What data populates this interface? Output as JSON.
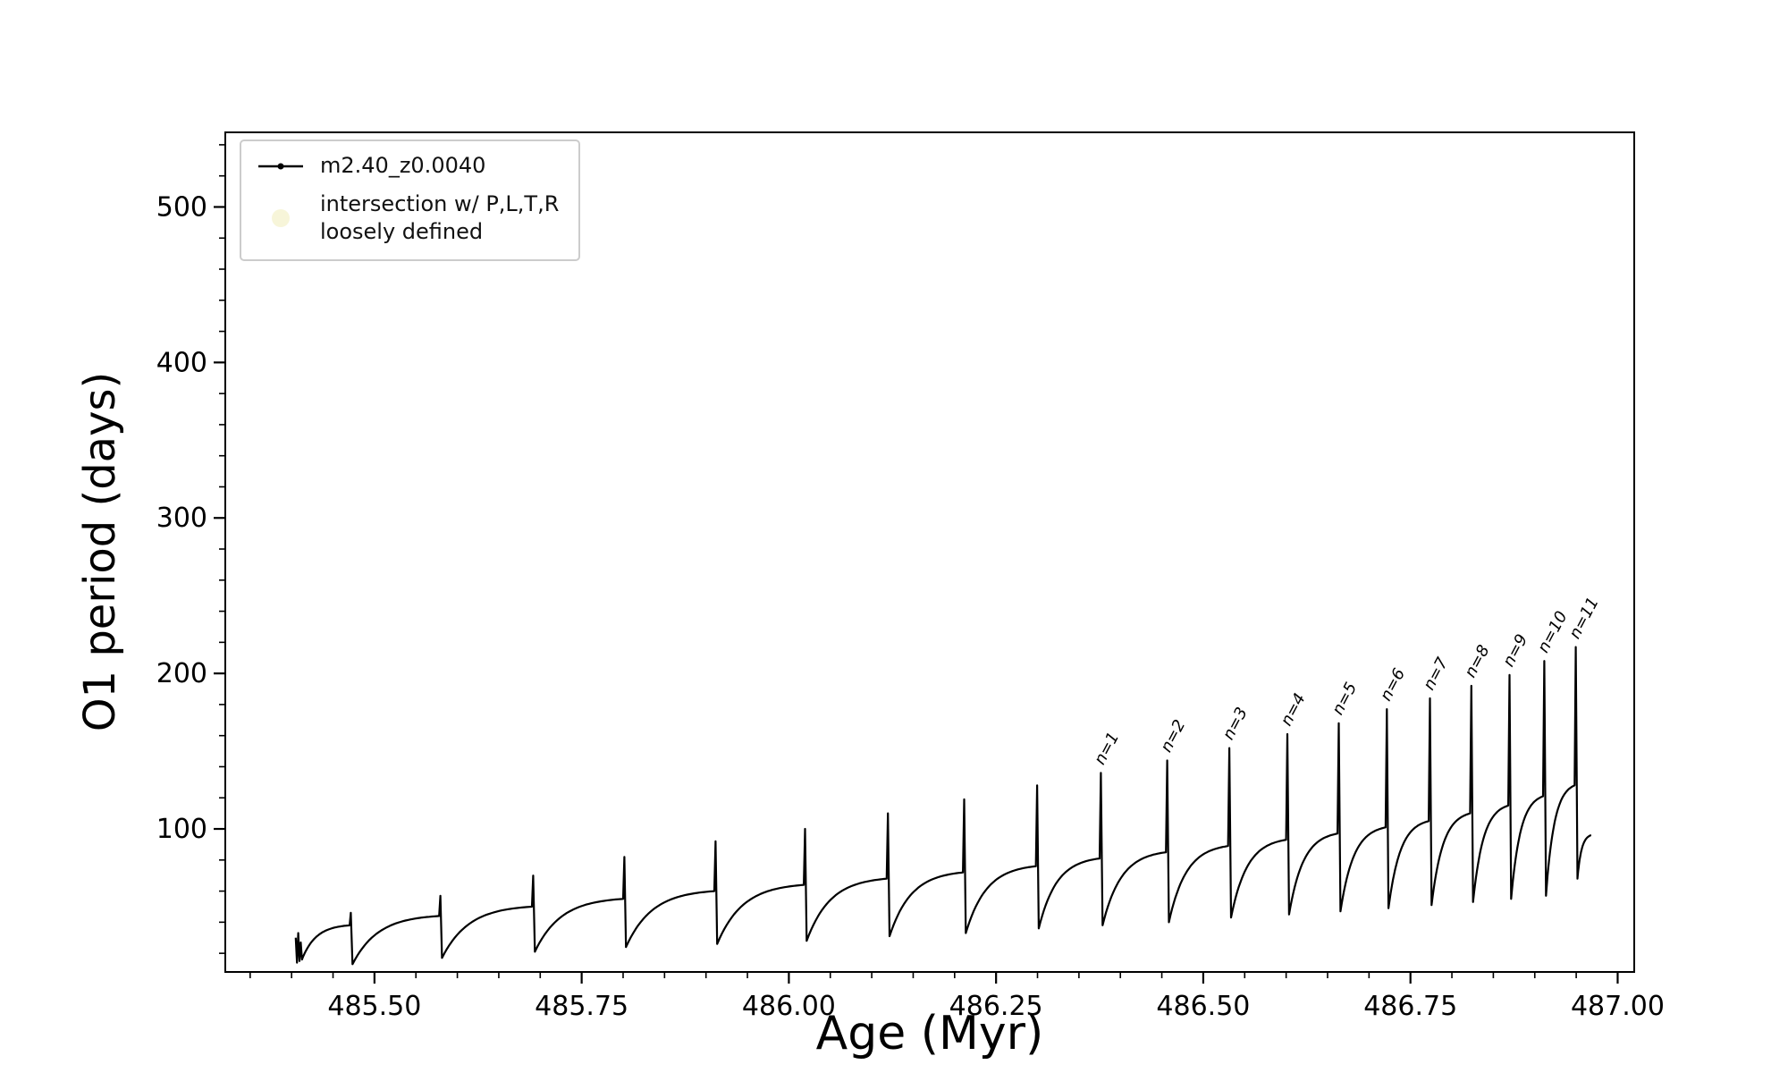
{
  "figure": {
    "background": "#ffffff",
    "series_color": "#000000",
    "axis_color": "#000000",
    "intersection_marker_color": "#eee8aa",
    "intersection_marker_opacity": 0.45
  },
  "legend": {
    "series_label": "m2.40_z0.0040",
    "intersection_label_line1": "intersection w/ P,L,T,R",
    "intersection_label_line2": "loosely defined"
  },
  "chart_data": {
    "type": "line",
    "title": "",
    "xlabel": "Age (Myr)",
    "ylabel": "O1 period (days)",
    "xlim": [
      485.32,
      487.02
    ],
    "ylim": [
      8,
      548
    ],
    "grid": false,
    "legend_position": "upper-left",
    "xticks": [
      {
        "v": 485.5,
        "label": "485.50"
      },
      {
        "v": 485.75,
        "label": "485.75"
      },
      {
        "v": 486.0,
        "label": "486.00"
      },
      {
        "v": 486.25,
        "label": "486.25"
      },
      {
        "v": 486.5,
        "label": "486.50"
      },
      {
        "v": 486.75,
        "label": "486.75"
      },
      {
        "v": 487.0,
        "label": "487.00"
      }
    ],
    "yticks": [
      {
        "v": 100,
        "label": "100"
      },
      {
        "v": 200,
        "label": "200"
      },
      {
        "v": 300,
        "label": "300"
      },
      {
        "v": 400,
        "label": "400"
      },
      {
        "v": 500,
        "label": "500"
      }
    ],
    "xtick_major_step": 0.25,
    "xminor_step": 0.05,
    "ytick_major_step": 100,
    "yminor_step": 20,
    "series": [
      {
        "name": "m2.40_z0.0040",
        "style": "line+marker",
        "units": {
          "x": "Myr",
          "y": "days"
        },
        "cycle_format": "[t_start, t_end, period_min, period_peak, spike_top]; spike_top null = track end",
        "intro_points": [
          [
            485.405,
            30
          ],
          [
            485.4065,
            14
          ],
          [
            485.408,
            33
          ],
          [
            485.4095,
            15
          ],
          [
            485.411,
            27
          ],
          [
            485.4125,
            16
          ]
        ],
        "cycles": [
          [
            485.4125,
            485.47,
            16,
            38,
            46
          ],
          [
            485.47,
            485.578,
            13,
            44,
            57
          ],
          [
            485.578,
            485.69,
            17,
            50,
            70
          ],
          [
            485.69,
            485.8,
            21,
            55,
            82
          ],
          [
            485.8,
            485.91,
            24,
            60,
            92
          ],
          [
            485.91,
            486.018,
            26,
            64,
            100
          ],
          [
            486.018,
            486.118,
            28,
            68,
            110
          ],
          [
            486.118,
            486.21,
            31,
            72,
            119
          ],
          [
            486.21,
            486.298,
            33,
            76,
            128
          ],
          [
            486.298,
            486.375,
            36,
            81,
            136
          ],
          [
            486.375,
            486.455,
            38,
            85,
            144
          ],
          [
            486.455,
            486.53,
            40,
            89,
            152
          ],
          [
            486.53,
            486.6,
            43,
            93,
            161
          ],
          [
            486.6,
            486.662,
            45,
            97,
            168
          ],
          [
            486.662,
            486.72,
            47,
            101,
            177
          ],
          [
            486.72,
            486.772,
            49,
            105,
            184
          ],
          [
            486.772,
            486.822,
            51,
            110,
            192
          ],
          [
            486.822,
            486.868,
            53,
            115,
            199
          ],
          [
            486.868,
            486.91,
            55,
            121,
            208
          ],
          [
            486.91,
            486.948,
            57,
            128,
            217
          ],
          [
            486.948,
            486.968,
            68,
            96,
            null
          ]
        ]
      }
    ],
    "annotations": [
      {
        "label": "n=1",
        "x": 486.375,
        "y": 136
      },
      {
        "label": "n=2",
        "x": 486.455,
        "y": 144
      },
      {
        "label": "n=3",
        "x": 486.53,
        "y": 152
      },
      {
        "label": "n=4",
        "x": 486.6,
        "y": 161
      },
      {
        "label": "n=5",
        "x": 486.662,
        "y": 168
      },
      {
        "label": "n=6",
        "x": 486.72,
        "y": 177
      },
      {
        "label": "n=7",
        "x": 486.772,
        "y": 184
      },
      {
        "label": "n=8",
        "x": 486.822,
        "y": 192
      },
      {
        "label": "n=9",
        "x": 486.868,
        "y": 199
      },
      {
        "label": "n=10",
        "x": 486.91,
        "y": 208
      },
      {
        "label": "n=11",
        "x": 486.948,
        "y": 217
      }
    ]
  }
}
